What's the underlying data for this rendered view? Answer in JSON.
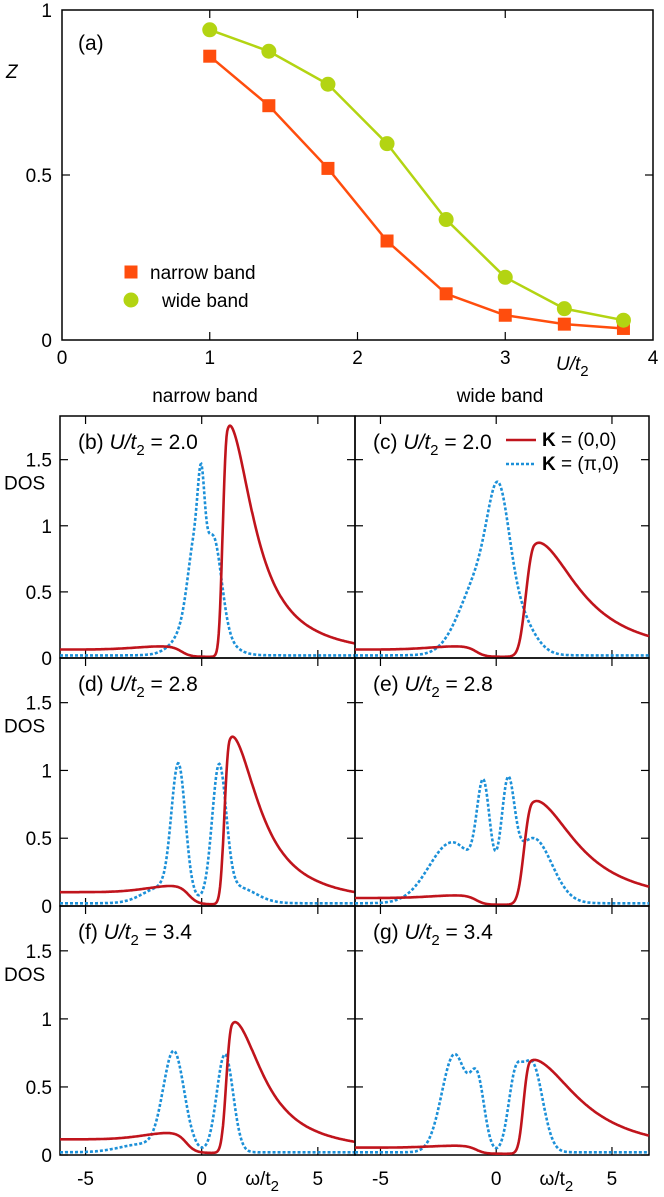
{
  "chart_data": [
    {
      "id": "a",
      "type": "line",
      "panel_label": "(a)",
      "xlabel": "U/t2",
      "ylabel": "Z",
      "xlim": [
        0,
        4
      ],
      "ylim": [
        0,
        1
      ],
      "x_ticks": [
        "0",
        "1",
        "2",
        "3",
        "4"
      ],
      "y_ticks": [
        "0",
        "0.5",
        "1"
      ],
      "legend_position": "lower-left",
      "series": [
        {
          "name": "narrow band",
          "marker": "square",
          "color": "#ff4d0d",
          "x": [
            1.0,
            1.4,
            1.8,
            2.2,
            2.6,
            3.0,
            3.4,
            3.8
          ],
          "y": [
            0.86,
            0.71,
            0.52,
            0.3,
            0.14,
            0.075,
            0.048,
            0.035
          ]
        },
        {
          "name": "wide band",
          "marker": "circle",
          "color": "#b3d412",
          "x": [
            1.0,
            1.4,
            1.8,
            2.2,
            2.6,
            3.0,
            3.4,
            3.8
          ],
          "y": [
            0.94,
            0.875,
            0.775,
            0.595,
            0.365,
            0.19,
            0.095,
            0.06
          ]
        }
      ]
    },
    {
      "id": "dos",
      "type": "line",
      "ylabel": "DOS",
      "xlabel": "ω/t2",
      "xlim": [
        -6.1,
        6.6
      ],
      "ylim": [
        0,
        1.8
      ],
      "x_ticks": [
        "-5",
        "0",
        "5"
      ],
      "y_ticks": [
        "0",
        "0.5",
        "1",
        "1.5"
      ],
      "column_titles": [
        "narrow band",
        "wide band"
      ],
      "legend_position": "top-right",
      "legend": [
        {
          "bold": "K",
          "rest": " = (0,0)",
          "color": "#c0141c",
          "dash": "solid"
        },
        {
          "bold": "K",
          "rest": " = (π,0)",
          "color": "#1c90d8",
          "dash": "dotted"
        }
      ],
      "panels": [
        {
          "label": "(b)",
          "u_value": "2.0",
          "band": "narrow",
          "k00": {
            "lpos": 0.85,
            "lw": 0.35,
            "lh": 0.05,
            "ppos": 1.1,
            "pw": 0.4,
            "ph": 1.78,
            "pwr": 1.35,
            "bg": 0.03
          },
          "kpi": [
            {
              "c": -0.25,
              "w": 0.32,
              "h": 0.58
            },
            {
              "c": 0.55,
              "w": 0.32,
              "h": 0.58
            },
            {
              "c": -0.02,
              "w": 0.14,
              "h": 0.52
            },
            {
              "c": 0,
              "w": 0.8,
              "h": 0.36
            }
          ]
        },
        {
          "label": "(c)",
          "u_value": "2.0",
          "band": "wide",
          "k00": {
            "lpos": 0.85,
            "lw": 0.35,
            "lh": 0.05,
            "ppos": 1.65,
            "pw": 0.75,
            "ph": 0.88,
            "pwr": 2.3,
            "bg": 0.03
          },
          "kpi": [
            {
              "c": -0.6,
              "w": 0.9,
              "h": 0.62
            },
            {
              "c": 0.1,
              "w": 0.45,
              "h": 0.72
            },
            {
              "c": 0.9,
              "w": 0.7,
              "h": 0.25
            }
          ]
        },
        {
          "label": "(d)",
          "u_value": "2.8",
          "band": "narrow",
          "k00": {
            "lpos": 0.55,
            "lw": 0.4,
            "lh": 0.1,
            "ppos": 1.2,
            "pw": 0.45,
            "ph": 1.26,
            "pwr": 1.5,
            "bg": 0.04
          },
          "kpi": [
            {
              "c": -1.0,
              "w": 0.3,
              "h": 0.95
            },
            {
              "c": 0.75,
              "w": 0.3,
              "h": 0.95
            },
            {
              "c": -1.7,
              "w": 0.8,
              "h": 0.12
            },
            {
              "c": 1.5,
              "w": 0.8,
              "h": 0.12
            }
          ]
        },
        {
          "label": "(e)",
          "u_value": "2.8",
          "band": "wide",
          "k00": {
            "lpos": 0.85,
            "lw": 0.35,
            "lh": 0.04,
            "ppos": 1.55,
            "pw": 0.7,
            "ph": 0.78,
            "pwr": 2.3,
            "bg": 0.03
          },
          "kpi": [
            {
              "c": -0.55,
              "w": 0.28,
              "h": 0.72
            },
            {
              "c": 0.5,
              "w": 0.28,
              "h": 0.72
            },
            {
              "c": -1.9,
              "w": 1.0,
              "h": 0.45
            },
            {
              "c": 1.6,
              "w": 0.8,
              "h": 0.48
            }
          ]
        },
        {
          "label": "(f)",
          "u_value": "3.4",
          "band": "narrow",
          "k00": {
            "lpos": 0.65,
            "lw": 0.45,
            "lh": 0.1,
            "ppos": 1.3,
            "pw": 0.5,
            "ph": 0.98,
            "pwr": 1.6,
            "bg": 0.05
          },
          "kpi": [
            {
              "c": -1.2,
              "w": 0.45,
              "h": 0.72
            },
            {
              "c": 1.0,
              "w": 0.35,
              "h": 0.72
            },
            {
              "c": -2.5,
              "w": 1.0,
              "h": 0.06
            }
          ]
        },
        {
          "label": "(g)",
          "u_value": "3.4",
          "band": "wide",
          "k00": {
            "lpos": 0.85,
            "lw": 0.35,
            "lh": 0.03,
            "ppos": 1.45,
            "pw": 0.55,
            "ph": 0.7,
            "pwr": 2.5,
            "bg": 0.03
          },
          "kpi": [
            {
              "c": -1.8,
              "w": 0.55,
              "h": 0.72
            },
            {
              "c": 1.55,
              "w": 0.45,
              "h": 0.65
            },
            {
              "c": 0.8,
              "w": 0.3,
              "h": 0.45
            },
            {
              "c": -0.8,
              "w": 0.3,
              "h": 0.45
            }
          ]
        }
      ]
    }
  ]
}
